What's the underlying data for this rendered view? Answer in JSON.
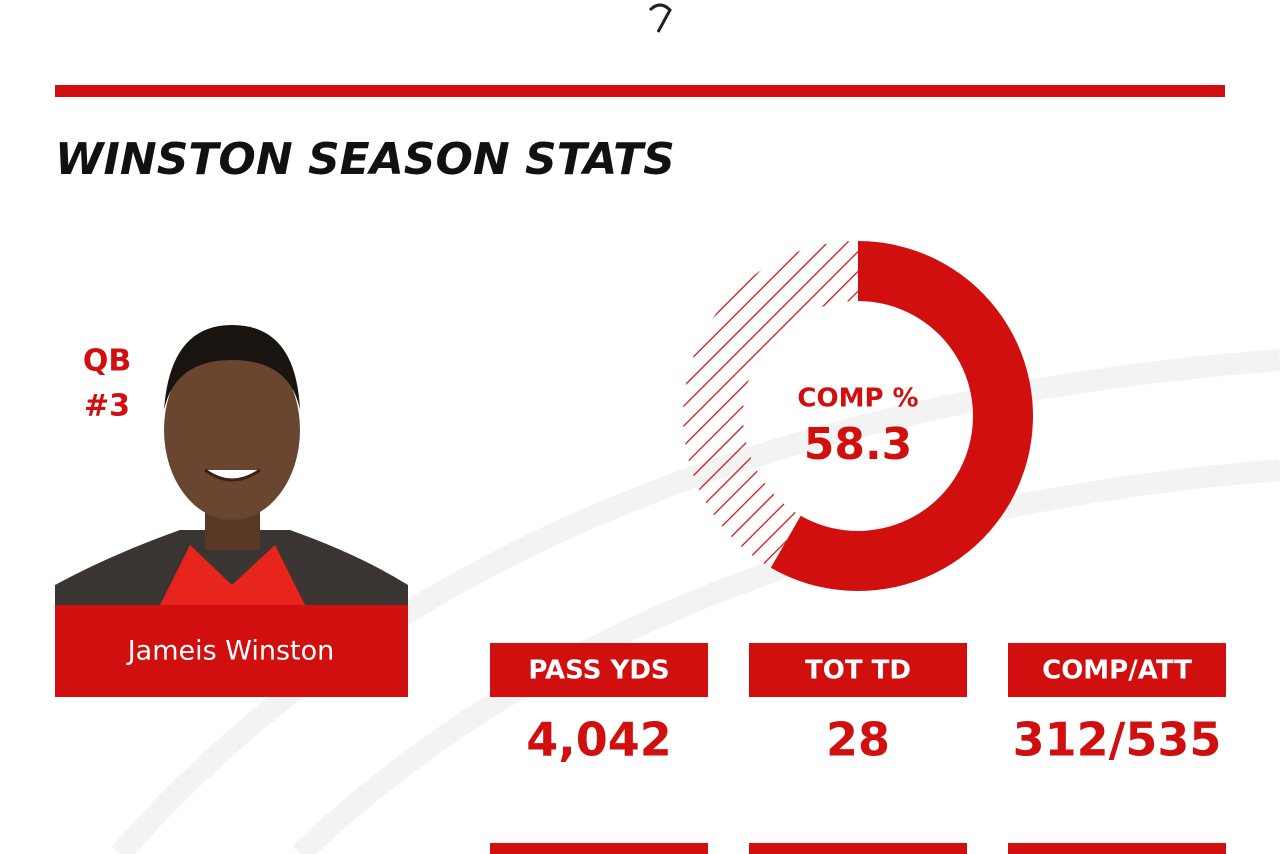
{
  "header": {
    "title": "WINSTON SEASON STATS"
  },
  "player": {
    "position": "QB",
    "number": "#3",
    "name": "Jameis Winston"
  },
  "donut": {
    "label": "COMP %",
    "value": 58.3
  },
  "stats": [
    {
      "label": "PASS YDS",
      "value": "4,042"
    },
    {
      "label": "TOT TD",
      "value": "28"
    },
    {
      "label": "COMP/ATT",
      "value": "312/535"
    }
  ]
}
